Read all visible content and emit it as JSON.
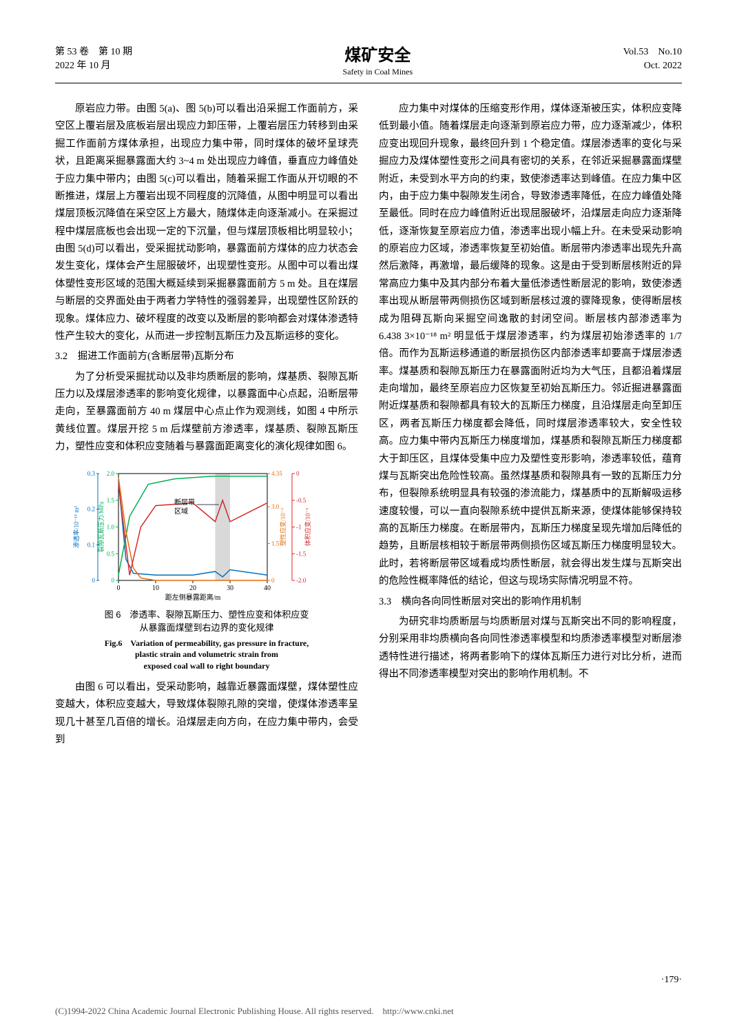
{
  "header": {
    "vol_issue_cn": "第 53 卷　第 10 期",
    "date_cn": "2022 年 10 月",
    "journal_cn": "煤矿安全",
    "journal_en": "Safety in Coal Mines",
    "vol_issue_en": "Vol.53　No.10",
    "date_en": "Oct. 2022"
  },
  "left_col": {
    "p1": "原岩应力带。由图 5(a)、图 5(b)可以看出沿采掘工作面前方，采空区上覆岩层及底板岩层出现应力卸压带，上覆岩层压力转移到由采掘工作面前方煤体承担，出现应力集中带，同时煤体的破坏呈球壳状，且距离采掘暴露面大约 3~4 m 处出现应力峰值，垂直应力峰值处于应力集中带内；由图 5(c)可以看出，随着采掘工作面从开切眼的不断推进，煤层上方覆岩出现不同程度的沉降值，从图中明显可以看出煤层顶板沉降值在采空区上方最大，随煤体走向逐渐减小。在采掘过程中煤层底板也会出现一定的下沉量，但与煤层顶板相比明显较小；由图 5(d)可以看出，受采掘扰动影响，暴露面前方煤体的应力状态会发生变化，煤体会产生屈服破坏，出现塑性变形。从图中可以看出煤体塑性变形区域的范围大概延续到采掘暴露面前方 5 m 处。且在煤层与断层的交界面处由于两者力学特性的强弱差异，出现塑性区阶跃的现象。煤体应力、破坏程度的改变以及断层的影响都会对煤体渗透特性产生较大的变化，从而进一步控制瓦斯压力及瓦斯运移的变化。",
    "sec32": "3.2　掘进工作面前方(含断层带)瓦斯分布",
    "p2": "为了分析受采掘扰动以及非均质断层的影响，煤基质、裂隙瓦斯压力以及煤层渗透率的影响变化规律，以暴露面中心点起，沿断层带走向，至暴露面前方 40 m 煤层中心点止作为观测线，如图 4 中所示黄线位置。煤层开挖 5 m 后煤壁前方渗透率，煤基质、裂隙瓦斯压力，塑性应变和体积应变随着与暴露面距离变化的演化规律如图 6。",
    "fig_cap_cn1": "图 6　渗透率、裂隙瓦斯压力、塑性应变和体积应变",
    "fig_cap_cn2": "从暴露面煤壁到右边界的变化规律",
    "fig_cap_en1": "Fig.6　Variation of permeability, gas pressure in fracture,",
    "fig_cap_en2": "plastic strain and volumetric strain from",
    "fig_cap_en3": "exposed coal wall to right boundary",
    "p3": "由图 6 可以看出，受采动影响，越靠近暴露面煤壁，煤体塑性应变越大，体积应变越大，导致煤体裂隙孔隙的突增，使煤体渗透率呈现几十甚至几百倍的增长。沿煤层走向方向，在应力集中带内，会受到"
  },
  "right_col": {
    "p1": "应力集中对煤体的压缩变形作用，煤体逐渐被压实，体积应变降低到最小值。随着煤层走向逐渐到原岩应力带，应力逐渐减少，体积应变出现回升现象，最终回升到 1 个稳定值。煤层渗透率的变化与采掘应力及煤体塑性变形之间具有密切的关系，在邻近采掘暴露面煤壁附近，未受到水平方向的约束，致使渗透率达到峰值。在应力集中区内，由于应力集中裂隙发生闭合，导致渗透率降低，在应力峰值处降至最低。同时在应力峰值附近出现屈服破坏，沿煤层走向应力逐渐降低，逐渐恢复至原岩应力值，渗透率出现小幅上升。在未受采动影响的原岩应力区域，渗透率恢复至初始值。断层带内渗透率出现先升高然后激降，再激增，最后缓降的现象。这是由于受到断层核附近的异常高应力集中及其内部分布着大量低渗透性断层泥的影响，致使渗透率出现从断层带两侧损伤区域到断层核过渡的骤降现象，使得断层核成为阻碍瓦斯向采掘空间逸散的封闭空间。断层核内部渗透率为 6.438 3×10⁻¹⁸ m² 明显低于煤层渗透率，约为煤层初始渗透率的 1/7 倍。而作为瓦斯运移通道的断层损伤区内部渗透率却要高于煤层渗透率。煤基质和裂隙瓦斯压力在暴露面附近均为大气压，且都沿着煤层走向增加，最终至原岩应力区恢复至初始瓦斯压力。邻近掘进暴露面附近煤基质和裂隙都具有较大的瓦斯压力梯度，且沿煤层走向至卸压区，两者瓦斯压力梯度都会降低，同时煤层渗透率较大，安全性较高。应力集中带内瓦斯压力梯度增加，煤基质和裂隙瓦斯压力梯度都大于卸压区，且煤体受集中应力及塑性变形影响，渗透率较低，蕴育煤与瓦斯突出危险性较高。虽然煤基质和裂隙具有一致的瓦斯压力分布，但裂隙系统明显具有较强的渗流能力，煤基质中的瓦斯解吸运移速度较慢，可以一直向裂隙系统中提供瓦斯来源，使煤体能够保持较高的瓦斯压力梯度。在断层带内，瓦斯压力梯度呈现先增加后降低的趋势，且断层核相较于断层带两侧损伤区域瓦斯压力梯度明显较大。此时，若将断层带区域看成均质性断层，就会得出发生煤与瓦斯突出的危险性概率降低的结论，但这与现场实际情况明显不符。",
    "sec33": "3.3　横向各向同性断层对突出的影响作用机制",
    "p2": "为研究非均质断层与均质断层对煤与瓦斯突出不同的影响程度，分别采用非均质横向各向同性渗透率模型和均质渗透率模型对断层渗透特性进行描述，将两者影响下的煤体瓦斯压力进行对比分析，进而得出不同渗透率模型对突出的影响作用机制。不"
  },
  "chart": {
    "x_ticks": [
      "0",
      "10",
      "20",
      "30",
      "40"
    ],
    "y1_ticks": [
      "0",
      "0.1",
      "0.2",
      "0.3"
    ],
    "y2_ticks": [
      "0",
      "0.5",
      "1.0",
      "1.5",
      "2.0"
    ],
    "y3_ticks": [
      "0",
      "1.5",
      "3.0",
      "4.35"
    ],
    "y4_ticks": [
      "-2.0",
      "-1.5",
      "-1",
      "-0.5",
      "0"
    ],
    "x_label": "距左侧暴露距离/m",
    "y1_label": "渗透率/10⁻¹⁵ m²",
    "y2_label": "裂隙瓦斯压力/MPa",
    "y3_label": "塑性应变/10⁻³",
    "y4_label": "体积应变/10⁻³",
    "fault_label1": "断层带",
    "fault_label2": "区域",
    "colors": {
      "perm": "#0070c0",
      "pressure": "#00b050",
      "plastic": "#e46c0a",
      "volumetric": "#d62728",
      "fault_fill": "#d9d9d9",
      "axis": "#000000"
    },
    "perm_data": [
      [
        0,
        0.28
      ],
      [
        2,
        0.06
      ],
      [
        4,
        0.02
      ],
      [
        10,
        0.015
      ],
      [
        20,
        0.015
      ],
      [
        26,
        0.025
      ],
      [
        28,
        0.01
      ],
      [
        30,
        0.03
      ],
      [
        40,
        0.015
      ]
    ],
    "pressure_data": [
      [
        0,
        0.1
      ],
      [
        3,
        1.2
      ],
      [
        8,
        1.8
      ],
      [
        15,
        1.9
      ],
      [
        25,
        1.95
      ],
      [
        40,
        1.95
      ]
    ],
    "plastic_data": [
      [
        0,
        4.2
      ],
      [
        2,
        2.0
      ],
      [
        4,
        0.5
      ],
      [
        6,
        0.1
      ],
      [
        10,
        0
      ],
      [
        40,
        0
      ]
    ],
    "vol_data": [
      [
        0,
        -0.2
      ],
      [
        3,
        -1.9
      ],
      [
        6,
        -1.0
      ],
      [
        10,
        -0.6
      ],
      [
        20,
        -0.55
      ],
      [
        26,
        -0.9
      ],
      [
        28,
        -0.5
      ],
      [
        30,
        -0.9
      ],
      [
        40,
        -0.55
      ]
    ],
    "fault_zone": [
      26,
      30
    ]
  },
  "page_num": "·179·",
  "footer": "(C)1994-2022 China Academic Journal Electronic Publishing House. All rights reserved.　http://www.cnki.net"
}
